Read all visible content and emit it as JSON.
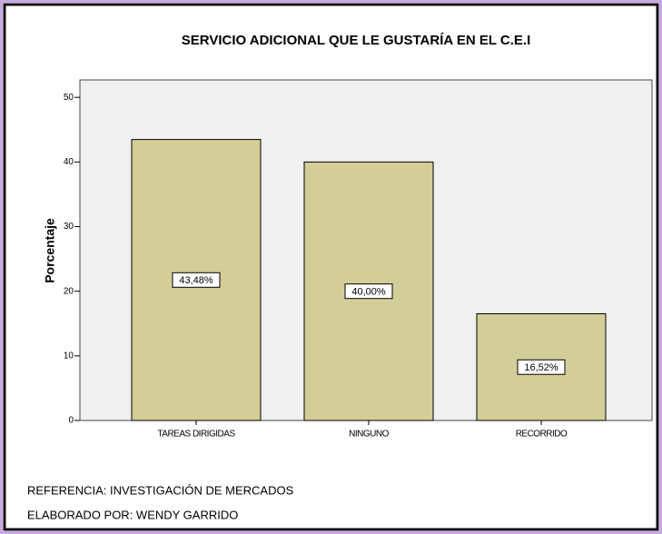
{
  "chart_data": {
    "type": "bar",
    "title": "SERVICIO ADICIONAL QUE LE GUSTARÍA EN EL C.E.I",
    "y_label": "Porcentaje",
    "categories": [
      "TAREAS DIRIGIDAS",
      "NINGUNO",
      "RECORRIDO"
    ],
    "values": [
      43.48,
      40.0,
      16.52
    ],
    "value_labels": [
      "43,48%",
      "40,00%",
      "16,52%"
    ],
    "color": "#d3cd98",
    "ylim": [
      0,
      52.7
    ],
    "yticks": [
      0,
      10,
      20,
      30,
      40,
      50
    ],
    "annotations": [
      "REFERENCIA: INVESTIGACIÓN DE MERCADOS",
      "ELABORADO POR: WENDY GARRIDO"
    ]
  }
}
